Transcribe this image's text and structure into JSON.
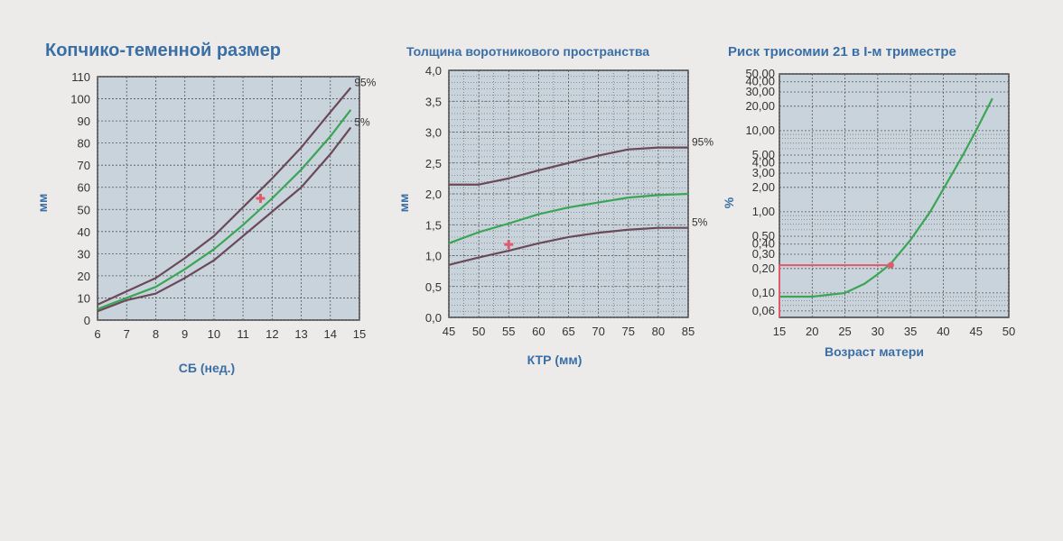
{
  "colors": {
    "plot_bg": "#c9d3dc",
    "grid": "#555555",
    "title": "#3a6fa6",
    "p5": "#6a4a58",
    "p95": "#6a4a58",
    "median": "#3aa655",
    "marker": "#e05a6a"
  },
  "chart_data": [
    {
      "type": "line",
      "title": "Копчико-теменной размер",
      "xlabel": "СБ (нед.)",
      "ylabel": "мм",
      "xlim": [
        6,
        15
      ],
      "ylim": [
        0,
        110
      ],
      "x_ticks": [
        "6",
        "7",
        "8",
        "9",
        "10",
        "11",
        "12",
        "13",
        "14",
        "15"
      ],
      "y_ticks": [
        "0",
        "10",
        "20",
        "30",
        "40",
        "50",
        "60",
        "70",
        "80",
        "90",
        "100",
        "110"
      ],
      "grid": true,
      "series": [
        {
          "name": "95%",
          "x": [
            6,
            7,
            8,
            9,
            10,
            11,
            12,
            13,
            14,
            14.7
          ],
          "y": [
            7,
            13,
            19,
            28,
            38,
            51,
            64,
            78,
            94,
            105
          ]
        },
        {
          "name": "",
          "x": [
            6,
            7,
            8,
            9,
            10,
            11,
            12,
            13,
            14,
            14.7
          ],
          "y": [
            5,
            10,
            15,
            23,
            32,
            43,
            55,
            68,
            83,
            95
          ]
        },
        {
          "name": "5%",
          "x": [
            6,
            7,
            8,
            9,
            10,
            11,
            12,
            13,
            14,
            14.7
          ],
          "y": [
            4,
            9,
            12,
            19,
            27,
            38,
            49,
            60,
            75,
            87
          ]
        }
      ],
      "marker": {
        "x": 11.6,
        "y": 55
      }
    },
    {
      "type": "line",
      "title": "Толщина воротникового пространства",
      "xlabel": "КТР (мм)",
      "ylabel": "мм",
      "xlim": [
        45,
        85
      ],
      "ylim": [
        0,
        4
      ],
      "x_ticks": [
        "45",
        "50",
        "55",
        "60",
        "65",
        "70",
        "75",
        "80",
        "85"
      ],
      "y_ticks": [
        "0,0",
        "0,5",
        "1,0",
        "1,5",
        "2,0",
        "2,5",
        "3,0",
        "3,5",
        "4,0"
      ],
      "grid": true,
      "series": [
        {
          "name": "95%",
          "x": [
            45,
            50,
            55,
            60,
            65,
            70,
            75,
            80,
            85
          ],
          "y": [
            2.15,
            2.15,
            2.25,
            2.38,
            2.5,
            2.62,
            2.72,
            2.75,
            2.75
          ]
        },
        {
          "name": "",
          "x": [
            45,
            50,
            55,
            60,
            65,
            70,
            75,
            80,
            85
          ],
          "y": [
            1.2,
            1.38,
            1.52,
            1.67,
            1.78,
            1.86,
            1.94,
            1.98,
            2.0
          ]
        },
        {
          "name": "5%",
          "x": [
            45,
            50,
            55,
            60,
            65,
            70,
            75,
            80,
            85
          ],
          "y": [
            0.85,
            0.97,
            1.08,
            1.2,
            1.3,
            1.37,
            1.42,
            1.45,
            1.45
          ]
        }
      ],
      "marker": {
        "x": 55,
        "y": 1.18
      }
    },
    {
      "type": "line",
      "title": "Риск трисомии 21 в I-м триместре",
      "xlabel": "Возраст матери",
      "ylabel": "%",
      "xlim": [
        15,
        50
      ],
      "ylim": [
        0.05,
        50
      ],
      "yscale": "log",
      "x_ticks": [
        "15",
        "20",
        "25",
        "30",
        "35",
        "40",
        "45",
        "50"
      ],
      "y_ticks": [
        {
          "v": 0.06,
          "l": "0,06"
        },
        {
          "v": 0.1,
          "l": "0,10"
        },
        {
          "v": 0.2,
          "l": "0,20"
        },
        {
          "v": 0.3,
          "l": "0,30"
        },
        {
          "v": 0.4,
          "l": "0,40"
        },
        {
          "v": 0.5,
          "l": "0,50"
        },
        {
          "v": 1,
          "l": "1,00"
        },
        {
          "v": 2,
          "l": "2,00"
        },
        {
          "v": 3,
          "l": "3,00"
        },
        {
          "v": 4,
          "l": "4,00"
        },
        {
          "v": 5,
          "l": "5,00"
        },
        {
          "v": 10,
          "l": "10,00"
        },
        {
          "v": 20,
          "l": "20,00"
        },
        {
          "v": 30,
          "l": "30,00"
        },
        {
          "v": 40,
          "l": "40,00"
        },
        {
          "v": 50,
          "l": "50,00"
        }
      ],
      "grid": true,
      "series": [
        {
          "name": "",
          "x": [
            15,
            20,
            25,
            28,
            30,
            32,
            35,
            38,
            40,
            43,
            45,
            47.5
          ],
          "y": [
            0.09,
            0.09,
            0.1,
            0.13,
            0.17,
            0.23,
            0.45,
            1.0,
            1.9,
            5,
            10,
            25
          ]
        }
      ],
      "marker": {
        "x": 32,
        "y": 0.22
      }
    }
  ]
}
